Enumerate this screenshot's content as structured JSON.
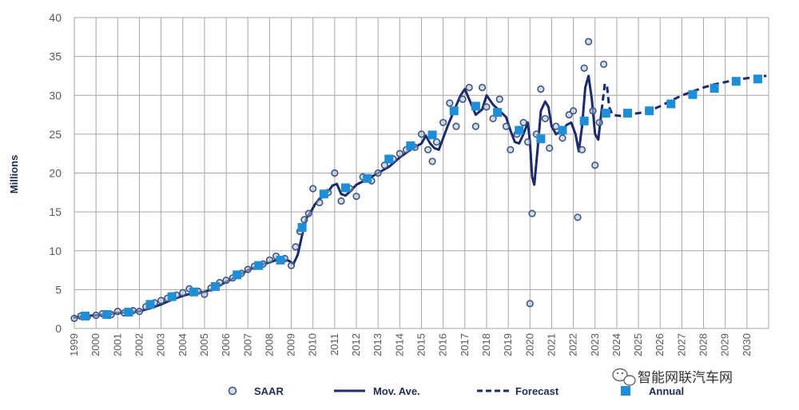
{
  "chart_data": {
    "type": "line",
    "ylabel": "Millions",
    "ylim": [
      0,
      40
    ],
    "yticks": [
      0,
      5,
      10,
      15,
      20,
      25,
      30,
      35,
      40
    ],
    "xticks": [
      "1999",
      "2000",
      "2001",
      "2002",
      "2003",
      "2004",
      "2005",
      "2006",
      "2007",
      "2008",
      "2009",
      "2010",
      "2011",
      "2012",
      "2013",
      "2014",
      "2015",
      "2016",
      "2017",
      "2018",
      "2019",
      "2020",
      "2021",
      "2022",
      "2023",
      "2024",
      "2025",
      "2026",
      "2027",
      "2028",
      "2029",
      "2030"
    ],
    "xlim": [
      1999,
      2031
    ],
    "grid": true,
    "legend_position": "bottom",
    "legend": [
      "SAAR",
      "Mov. Ave.",
      "Forecast",
      "Annual"
    ],
    "series": [
      {
        "name": "SAAR",
        "style": "hollow-circle",
        "x": [
          1999.0,
          1999.3,
          1999.6,
          2000.0,
          2000.3,
          2000.7,
          2001.0,
          2001.3,
          2001.7,
          2002.0,
          2002.3,
          2002.7,
          2003.0,
          2003.3,
          2003.7,
          2004.0,
          2004.3,
          2004.7,
          2005.0,
          2005.3,
          2005.7,
          2006.0,
          2006.3,
          2006.7,
          2007.0,
          2007.3,
          2007.7,
          2008.0,
          2008.3,
          2008.7,
          2009.0,
          2009.2,
          2009.4,
          2009.6,
          2009.8,
          2010.0,
          2010.3,
          2010.7,
          2011.0,
          2011.3,
          2011.7,
          2012.0,
          2012.3,
          2012.7,
          2013.0,
          2013.3,
          2013.7,
          2014.0,
          2014.3,
          2014.7,
          2015.0,
          2015.3,
          2015.5,
          2015.7,
          2016.0,
          2016.3,
          2016.6,
          2016.9,
          2017.2,
          2017.5,
          2017.8,
          2018.0,
          2018.3,
          2018.6,
          2018.9,
          2019.1,
          2019.4,
          2019.7,
          2019.9,
          2020.0,
          2020.1,
          2020.3,
          2020.5,
          2020.7,
          2020.9,
          2021.2,
          2021.5,
          2021.8,
          2022.0,
          2022.2,
          2022.4,
          2022.5,
          2022.7,
          2022.9,
          2023.0,
          2023.2,
          2023.4
        ],
        "values": [
          1.3,
          1.6,
          1.5,
          1.7,
          1.9,
          1.8,
          2.2,
          2.0,
          2.3,
          2.2,
          2.8,
          3.3,
          3.6,
          3.9,
          4.3,
          4.6,
          5.1,
          4.8,
          4.4,
          5.2,
          5.9,
          6.2,
          6.5,
          7.1,
          7.6,
          8.0,
          8.3,
          8.8,
          9.3,
          9.0,
          8.1,
          10.5,
          12.5,
          14.0,
          14.8,
          18.0,
          16.2,
          17.5,
          20.0,
          16.4,
          18.0,
          17.0,
          19.5,
          19.0,
          20.0,
          21.0,
          21.8,
          22.5,
          23.0,
          23.3,
          25.0,
          23.0,
          21.5,
          24.0,
          26.5,
          29.0,
          26.0,
          29.5,
          31.0,
          26.0,
          31.0,
          28.5,
          27.0,
          29.5,
          26.0,
          23.0,
          25.0,
          26.5,
          24.0,
          3.2,
          14.8,
          25.0,
          30.8,
          27.0,
          23.2,
          26.0,
          24.5,
          27.5,
          28.0,
          14.3,
          23.0,
          33.5,
          36.9,
          28.0,
          21.0,
          26.5,
          34.0
        ]
      },
      {
        "name": "Mov. Ave.",
        "style": "solid",
        "x": [
          1999.0,
          1999.5,
          2000.0,
          2000.5,
          2001.0,
          2001.5,
          2002.0,
          2002.5,
          2003.0,
          2003.5,
          2004.0,
          2004.5,
          2005.0,
          2005.5,
          2006.0,
          2006.5,
          2007.0,
          2007.5,
          2008.0,
          2008.3,
          2008.6,
          2008.9,
          2009.1,
          2009.3,
          2009.5,
          2009.7,
          2009.9,
          2010.1,
          2010.3,
          2010.5,
          2010.7,
          2010.9,
          2011.1,
          2011.3,
          2011.5,
          2011.7,
          2012.0,
          2012.5,
          2013.0,
          2013.5,
          2014.0,
          2014.5,
          2015.0,
          2015.2,
          2015.4,
          2015.6,
          2015.8,
          2016.0,
          2016.2,
          2016.5,
          2016.8,
          2017.0,
          2017.2,
          2017.5,
          2017.8,
          2018.0,
          2018.3,
          2018.6,
          2018.9,
          2019.1,
          2019.3,
          2019.5,
          2019.7,
          2019.9,
          2020.0,
          2020.1,
          2020.2,
          2020.35,
          2020.5,
          2020.7,
          2020.85,
          2021.0,
          2021.2,
          2021.5,
          2021.7,
          2021.9,
          2022.1,
          2022.25,
          2022.4,
          2022.55,
          2022.7,
          2022.85,
          2023.0,
          2023.15,
          2023.3
        ],
        "values": [
          1.4,
          1.6,
          1.7,
          1.8,
          2.0,
          2.1,
          2.2,
          2.6,
          3.1,
          3.7,
          4.2,
          4.6,
          4.7,
          5.2,
          6.0,
          6.7,
          7.5,
          8.1,
          8.5,
          8.8,
          8.9,
          8.7,
          8.3,
          9.5,
          12.0,
          14.2,
          15.0,
          16.0,
          16.7,
          17.0,
          17.6,
          18.4,
          18.6,
          17.3,
          17.1,
          17.6,
          18.5,
          19.2,
          20.0,
          20.8,
          22.0,
          23.0,
          23.8,
          24.8,
          23.8,
          23.2,
          23.0,
          24.5,
          26.0,
          28.0,
          30.0,
          30.8,
          29.5,
          27.5,
          28.2,
          30.0,
          28.8,
          28.0,
          27.2,
          25.5,
          24.0,
          23.8,
          25.0,
          26.5,
          24.0,
          19.5,
          18.5,
          23.0,
          28.0,
          29.2,
          28.5,
          26.0,
          25.0,
          25.5,
          26.2,
          26.5,
          25.0,
          22.8,
          26.0,
          31.0,
          32.5,
          29.5,
          25.0,
          24.3,
          28.0
        ]
      },
      {
        "name": "Forecast",
        "style": "dashed",
        "x": [
          2023.3,
          2023.45,
          2023.55,
          2023.65,
          2023.8,
          2024.0,
          2024.3,
          2024.7,
          2025.0,
          2025.5,
          2026.0,
          2026.5,
          2027.0,
          2027.5,
          2028.0,
          2028.5,
          2029.0,
          2029.5,
          2030.0,
          2030.5,
          2030.9
        ],
        "values": [
          28.0,
          31.5,
          31.2,
          28.5,
          27.5,
          27.4,
          27.3,
          27.6,
          27.7,
          28.0,
          28.6,
          29.3,
          30.0,
          30.5,
          31.0,
          31.4,
          31.7,
          32.0,
          32.2,
          32.4,
          32.5
        ]
      },
      {
        "name": "Annual",
        "style": "square",
        "x": [
          1999.5,
          2000.5,
          2001.5,
          2002.5,
          2003.5,
          2004.5,
          2005.5,
          2006.5,
          2007.5,
          2008.5,
          2009.5,
          2010.5,
          2011.5,
          2012.5,
          2013.5,
          2014.5,
          2015.5,
          2016.5,
          2017.5,
          2018.5,
          2019.5,
          2020.5,
          2021.5,
          2022.5,
          2023.5,
          2024.5,
          2025.5,
          2026.5,
          2027.5,
          2028.5,
          2029.5,
          2030.5
        ],
        "values": [
          1.6,
          1.8,
          2.1,
          3.1,
          4.1,
          4.7,
          5.4,
          6.9,
          8.1,
          8.8,
          13.0,
          17.3,
          18.1,
          19.3,
          21.8,
          23.5,
          24.9,
          28.0,
          28.6,
          27.8,
          25.5,
          24.4,
          25.5,
          26.7,
          27.7,
          27.7,
          28.0,
          28.9,
          30.1,
          30.9,
          31.8,
          32.1
        ]
      }
    ],
    "colors": {
      "saar_stroke": "#44547a",
      "saar_fill": "#a6c4e6",
      "mov_ave": "#1a2a6c",
      "forecast": "#1a2a6c",
      "annual": "#1e8fd6",
      "grid": "#a6a6a6"
    }
  },
  "watermark": {
    "text": "智能网联汽车网",
    "icon": "wechat-icon"
  }
}
